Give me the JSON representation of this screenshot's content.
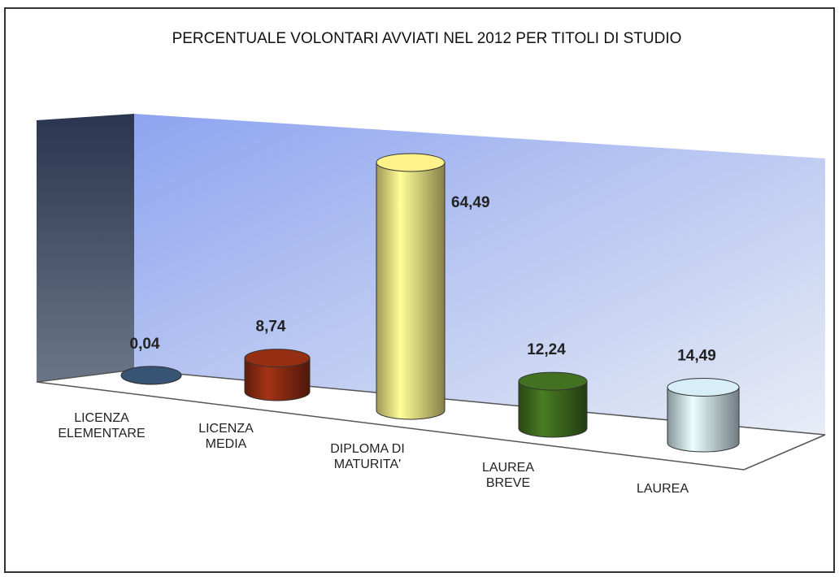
{
  "chart_data": {
    "type": "bar3d",
    "title": "PERCENTUALE VOLONTARI AVVIATI NEL 2012 PER TITOLI DI STUDIO",
    "categories": [
      "LICENZA\nELEMENTARE",
      "LICENZA\nMEDIA",
      "DIPLOMA DI\nMATURITA'",
      "LAUREA\nBREVE",
      "LAUREA"
    ],
    "values": [
      0.04,
      8.74,
      64.49,
      12.24,
      14.49
    ],
    "value_labels": [
      "0,04",
      "8,74",
      "64,49",
      "12,24",
      "14,49"
    ],
    "colors": [
      "#34506e",
      "#8e2c12",
      "#f4e684",
      "#3f6d1f",
      "#cde2ec"
    ]
  }
}
